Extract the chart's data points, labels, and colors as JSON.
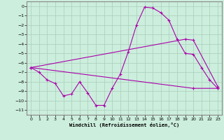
{
  "xlabel": "Windchill (Refroidissement éolien,°C)",
  "background_color": "#cceedd",
  "grid_color": "#aaccbb",
  "line_color": "#aa00aa",
  "xlim": [
    -0.5,
    23.5
  ],
  "ylim": [
    -11.5,
    0.5
  ],
  "xticks": [
    0,
    1,
    2,
    3,
    4,
    5,
    6,
    7,
    8,
    9,
    10,
    11,
    12,
    13,
    14,
    15,
    16,
    17,
    18,
    19,
    20,
    21,
    22,
    23
  ],
  "yticks": [
    0,
    -1,
    -2,
    -3,
    -4,
    -5,
    -6,
    -7,
    -8,
    -9,
    -10,
    -11
  ],
  "line1_x": [
    0,
    1,
    2,
    3,
    4,
    5,
    6,
    7,
    8,
    9,
    10,
    11,
    12,
    13,
    14,
    15,
    16,
    17,
    18,
    19,
    20,
    21,
    22,
    23
  ],
  "line1_y": [
    -6.5,
    -7.0,
    -7.8,
    -8.2,
    -9.5,
    -9.3,
    -8.0,
    -9.2,
    -10.5,
    -10.5,
    -8.7,
    -7.2,
    -4.8,
    -2.0,
    -0.1,
    -0.2,
    -0.7,
    -1.5,
    -3.5,
    -5.0,
    -5.1,
    -6.5,
    -7.8,
    -8.7
  ],
  "line2_x": [
    0,
    19,
    20,
    23
  ],
  "line2_y": [
    -6.5,
    -3.5,
    -3.6,
    -8.5
  ],
  "line3_x": [
    0,
    20,
    23
  ],
  "line3_y": [
    -6.5,
    -8.7,
    -8.7
  ],
  "marker": "+"
}
